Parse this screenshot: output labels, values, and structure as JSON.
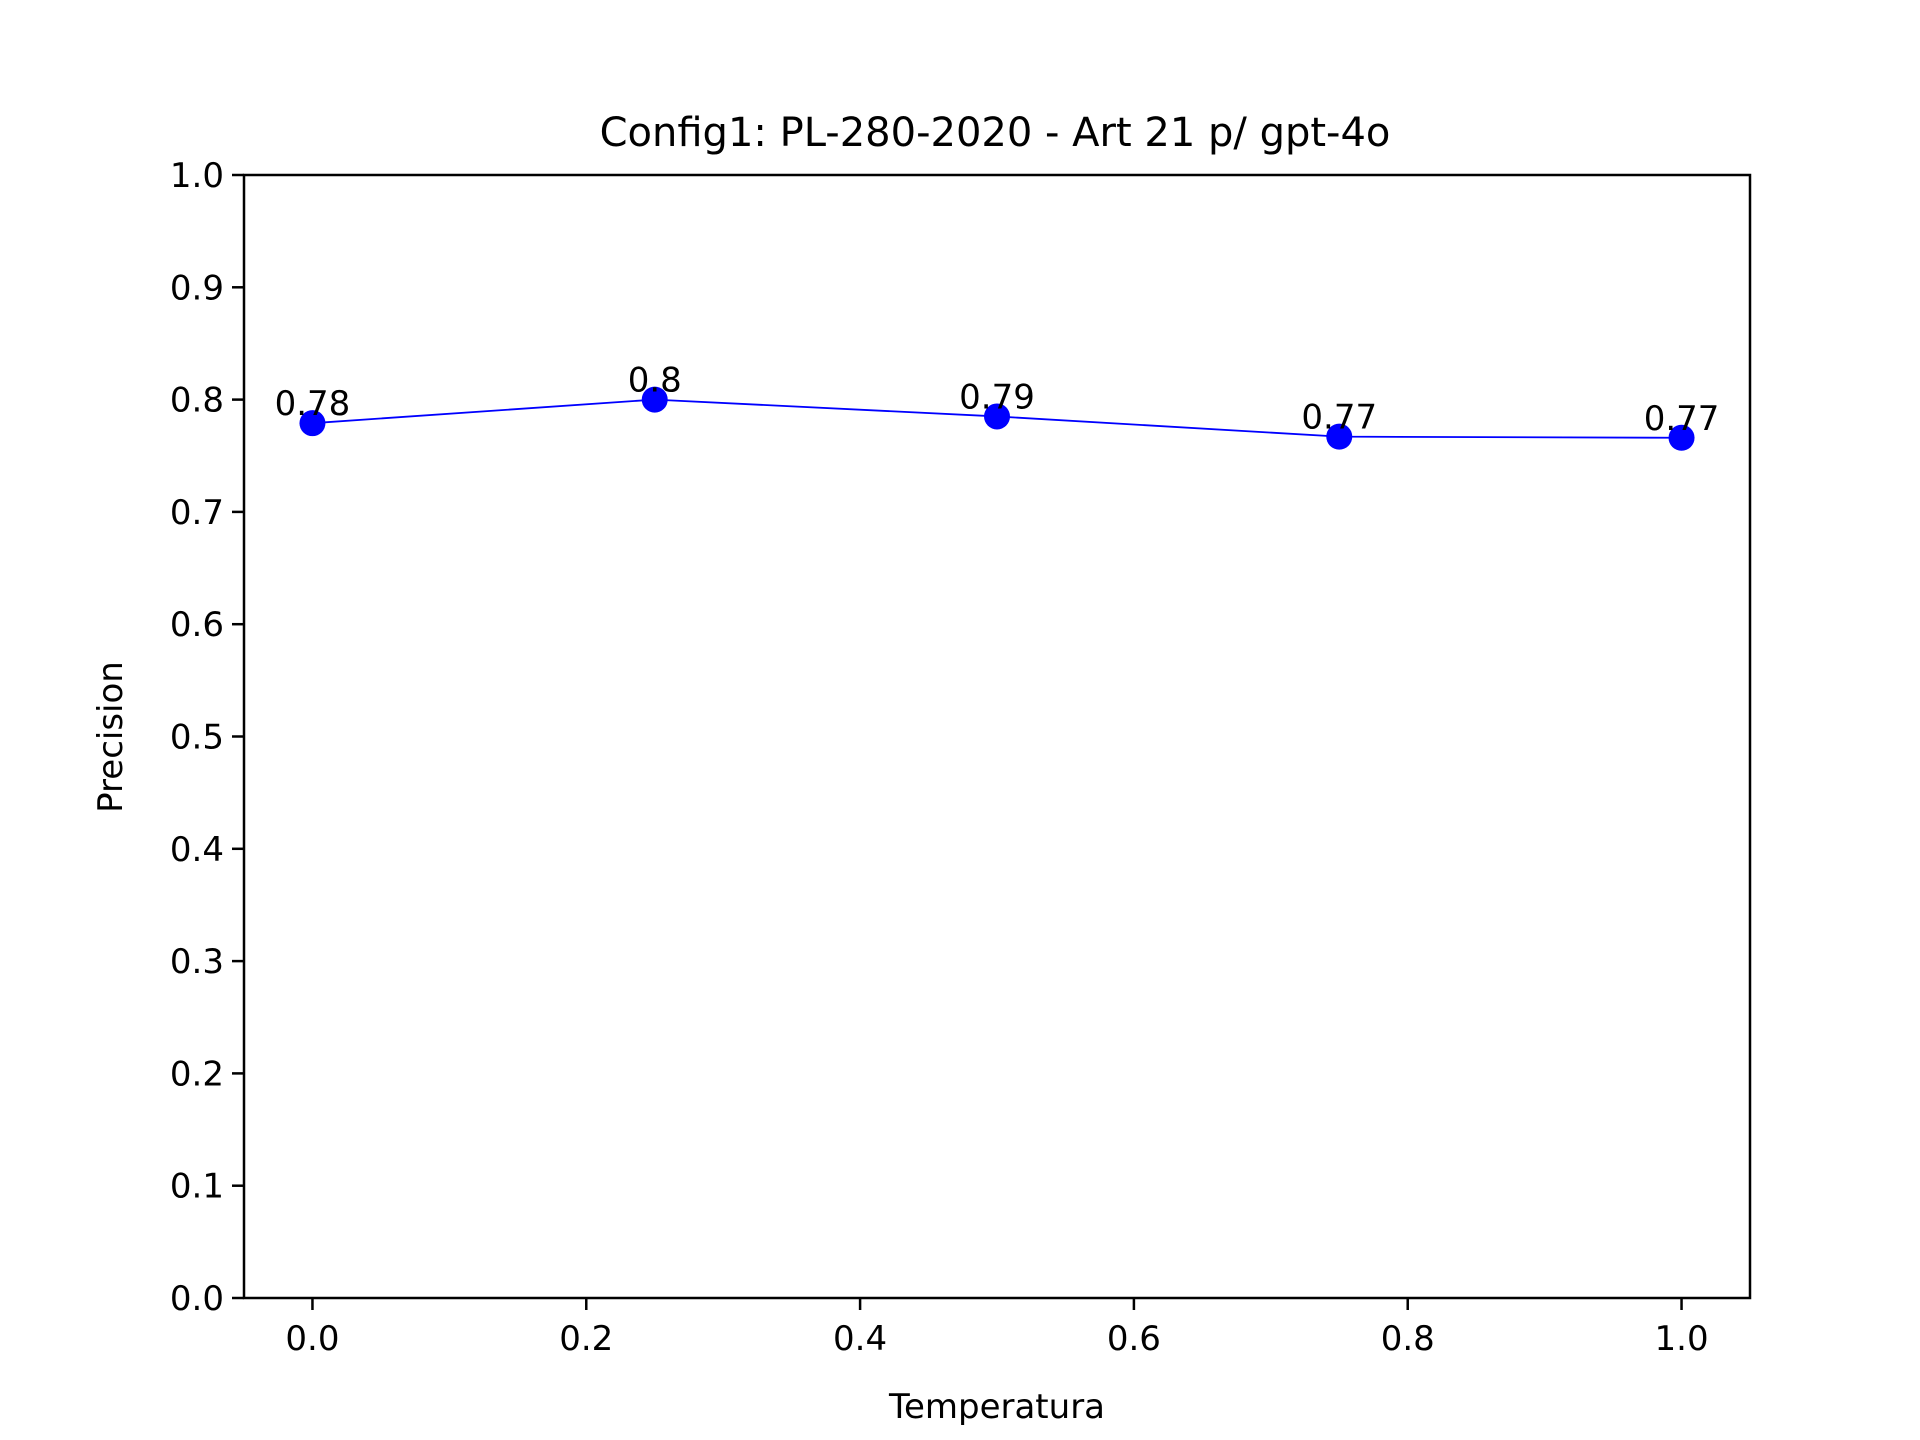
{
  "chart_data": {
    "type": "line",
    "title": "Config1: PL-280-2020 - Art 21 p/ gpt-4o",
    "xlabel": "Temperatura",
    "ylabel": "Precision",
    "xlim": [
      -0.05,
      1.05
    ],
    "ylim": [
      0.0,
      1.0
    ],
    "xticks": [
      "0.0",
      "0.2",
      "0.4",
      "0.6",
      "0.8",
      "1.0"
    ],
    "yticks": [
      "0.0",
      "0.1",
      "0.2",
      "0.3",
      "0.4",
      "0.5",
      "0.6",
      "0.7",
      "0.8",
      "0.9",
      "1.0"
    ],
    "grid": false,
    "series": [
      {
        "color": "#0000ff",
        "x": [
          0.0,
          0.25,
          0.5,
          0.75,
          1.0
        ],
        "y": [
          0.779,
          0.8,
          0.785,
          0.767,
          0.766
        ],
        "labels": [
          "0.78",
          "0.8",
          "0.79",
          "0.77",
          "0.77"
        ]
      }
    ]
  }
}
